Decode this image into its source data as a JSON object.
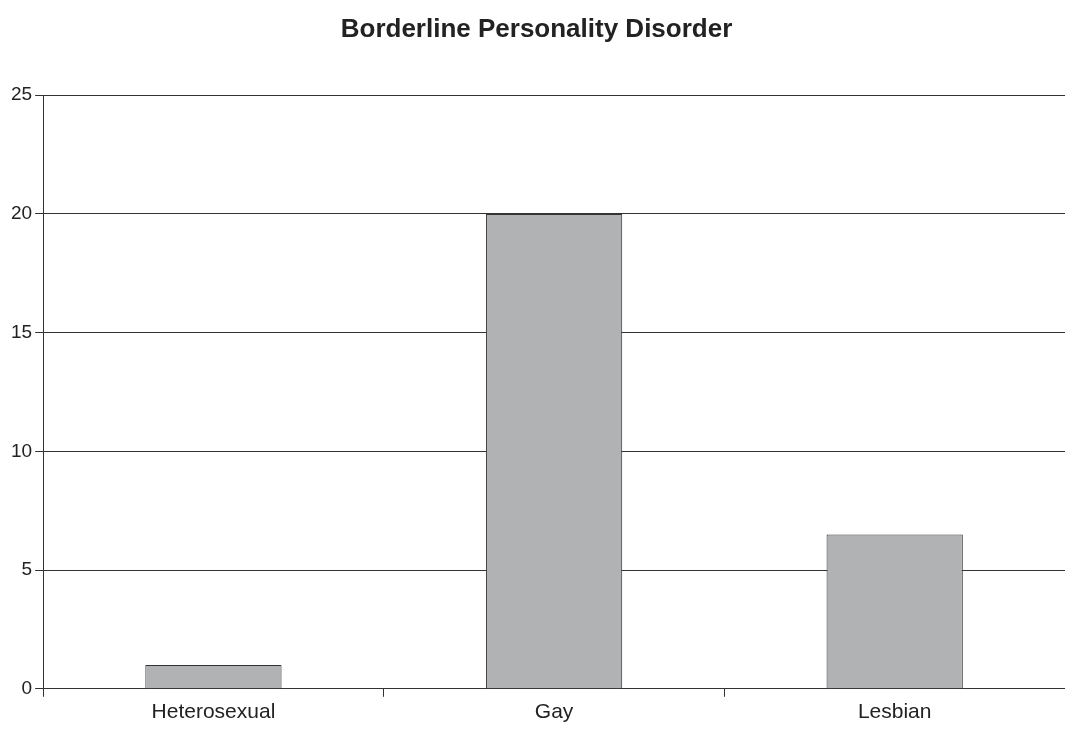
{
  "chart_data": {
    "type": "bar",
    "title": "Borderline Personality Disorder",
    "categories": [
      "Heterosexual",
      "Gay",
      "Lesbian"
    ],
    "values": [
      1,
      20,
      6.5
    ],
    "color": "#b1b2b4",
    "ylim": [
      0,
      25
    ],
    "yticks": [
      0,
      5,
      10,
      15,
      20,
      25
    ],
    "grid": "y",
    "legend": false
  }
}
